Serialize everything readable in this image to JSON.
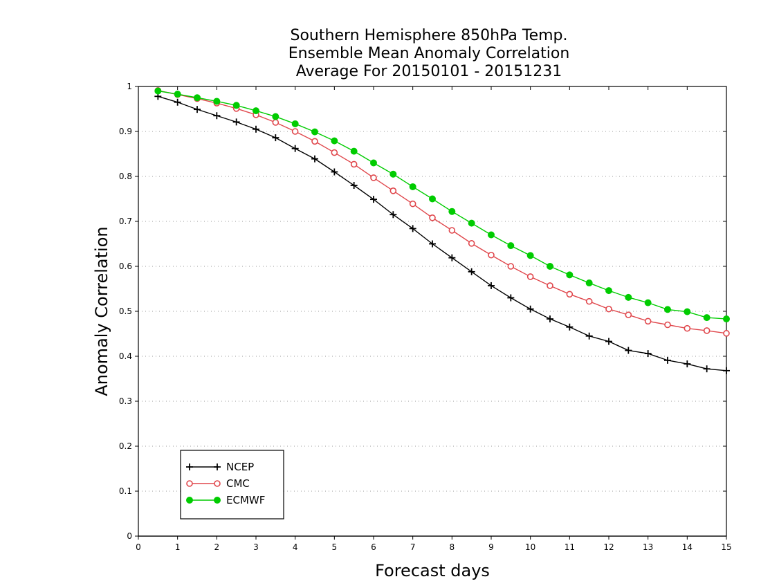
{
  "chart_data": {
    "type": "line",
    "title": [
      "Southern Hemisphere 850hPa Temp.",
      "Ensemble Mean Anomaly Correlation",
      "Average For 20150101 - 20151231"
    ],
    "xlabel": "Forecast days",
    "ylabel": "Anomaly Correlation",
    "xlim": [
      0,
      15
    ],
    "ylim": [
      0,
      1
    ],
    "xticks": [
      "0",
      "1",
      "2",
      "3",
      "4",
      "5",
      "6",
      "7",
      "8",
      "9",
      "10",
      "11",
      "12",
      "13",
      "14",
      "15"
    ],
    "yticks": [
      "0",
      "0.1",
      "0.2",
      "0.3",
      "0.4",
      "0.5",
      "0.6",
      "0.7",
      "0.8",
      "0.9",
      "1"
    ],
    "grid": "horizontal dotted",
    "legend_position": "bottom-left",
    "x": [
      0.5,
      1,
      1.5,
      2,
      2.5,
      3,
      3.5,
      4,
      4.5,
      5,
      5.5,
      6,
      6.5,
      7,
      7.5,
      8,
      8.5,
      9,
      9.5,
      10,
      10.5,
      11,
      11.5,
      12,
      12.5,
      13,
      13.5,
      14,
      14.5,
      15
    ],
    "series": [
      {
        "name": "NCEP",
        "color": "#000000",
        "marker": "plus",
        "values": [
          0.978,
          0.965,
          0.949,
          0.935,
          0.921,
          0.905,
          0.886,
          0.862,
          0.839,
          0.81,
          0.78,
          0.749,
          0.715,
          0.684,
          0.65,
          0.619,
          0.588,
          0.557,
          0.53,
          0.505,
          0.483,
          0.465,
          0.445,
          0.433,
          0.413,
          0.406,
          0.391,
          0.383,
          0.372,
          0.368
        ]
      },
      {
        "name": "CMC",
        "color": "#e0474c",
        "marker": "open-circle",
        "values": [
          0.991,
          0.982,
          0.973,
          0.963,
          0.951,
          0.937,
          0.92,
          0.9,
          0.878,
          0.853,
          0.827,
          0.797,
          0.768,
          0.739,
          0.708,
          0.68,
          0.651,
          0.625,
          0.6,
          0.577,
          0.557,
          0.538,
          0.522,
          0.505,
          0.492,
          0.478,
          0.47,
          0.462,
          0.457,
          0.451
        ]
      },
      {
        "name": "ECMWF",
        "color": "#00cc00",
        "marker": "filled-circle",
        "values": [
          0.99,
          0.983,
          0.975,
          0.967,
          0.958,
          0.946,
          0.933,
          0.917,
          0.899,
          0.879,
          0.856,
          0.83,
          0.805,
          0.777,
          0.75,
          0.722,
          0.696,
          0.67,
          0.646,
          0.624,
          0.6,
          0.581,
          0.563,
          0.546,
          0.531,
          0.519,
          0.504,
          0.499,
          0.486,
          0.483
        ]
      }
    ]
  }
}
